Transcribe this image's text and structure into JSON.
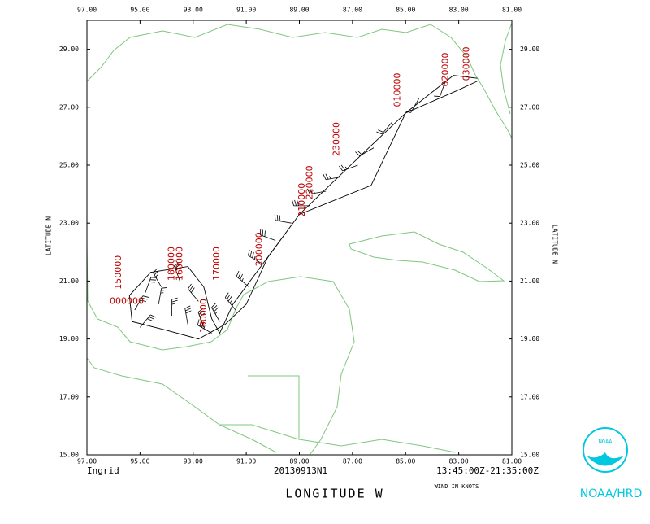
{
  "chart_data": {
    "type": "track",
    "storm": "Ingrid",
    "mission": "20130913N1",
    "time_range": "13:45:00Z-21:35:00Z",
    "wind_units": "WIND IN KNOTS",
    "xlabel": "LONGITUDE  W",
    "ylabel": "LATITUDE  N",
    "credit": "NOAA/HRD",
    "logo_text": "NOAA",
    "xlim": [
      97,
      81
    ],
    "ylim": [
      15,
      30
    ],
    "xticks": [
      {
        "value": 97,
        "label": "97.00"
      },
      {
        "value": 95,
        "label": "95.00"
      },
      {
        "value": 93,
        "label": "93.00"
      },
      {
        "value": 91,
        "label": "91.00"
      },
      {
        "value": 89,
        "label": "89.00"
      },
      {
        "value": 87,
        "label": "87.00"
      },
      {
        "value": 85,
        "label": "85.00"
      },
      {
        "value": 83,
        "label": "83.00"
      },
      {
        "value": 81,
        "label": "81.00"
      }
    ],
    "yticks": [
      {
        "value": 15,
        "label": "15.00"
      },
      {
        "value": 17,
        "label": "17.00"
      },
      {
        "value": 19,
        "label": "19.00"
      },
      {
        "value": 21,
        "label": "21.00"
      },
      {
        "value": 23,
        "label": "23.00"
      },
      {
        "value": 25,
        "label": "25.00"
      },
      {
        "value": 27,
        "label": "27.00"
      },
      {
        "value": 29,
        "label": "29.00"
      }
    ],
    "track": {
      "lon": [
        82.3,
        83.0,
        85.0,
        86.3,
        89.0,
        90.2,
        91.0,
        91.8,
        92.8,
        94.0,
        95.3,
        95.4,
        94.6,
        93.2,
        92.6,
        92.3,
        92.0,
        91.5,
        89.0,
        86.5,
        85.0,
        83.2,
        82.3
      ],
      "lat": [
        27.9,
        27.6,
        26.8,
        24.3,
        23.3,
        21.8,
        20.2,
        19.5,
        19.0,
        19.3,
        19.6,
        20.5,
        21.3,
        21.5,
        20.8,
        19.7,
        19.2,
        20.2,
        23.3,
        25.5,
        26.8,
        28.1,
        28.0
      ]
    },
    "barbs": {
      "lon": [
        83.5,
        84.5,
        85.5,
        86.2,
        86.8,
        87.4,
        88.0,
        88.6,
        89.3,
        89.9,
        90.4,
        90.9,
        91.4,
        92.0,
        92.6,
        93.2,
        93.8,
        94.3,
        94.8,
        95.2,
        95.0,
        94.2,
        93.5,
        92.8,
        92.3
      ],
      "lat": [
        27.9,
        27.3,
        26.5,
        25.6,
        25.0,
        24.6,
        24.1,
        23.6,
        23.0,
        22.4,
        21.6,
        20.8,
        20.0,
        19.6,
        19.4,
        19.5,
        19.8,
        20.2,
        20.6,
        20.0,
        19.4,
        20.8,
        21.0,
        20.3,
        19.2
      ],
      "speed": [
        15,
        15,
        20,
        20,
        25,
        25,
        25,
        30,
        30,
        30,
        35,
        35,
        35,
        35,
        30,
        30,
        25,
        25,
        30,
        35,
        30,
        25,
        25,
        30,
        35
      ],
      "direction": [
        200,
        210,
        220,
        240,
        250,
        260,
        260,
        270,
        280,
        290,
        300,
        310,
        320,
        330,
        340,
        350,
        0,
        10,
        20,
        30,
        40,
        330,
        340,
        320,
        300
      ]
    },
    "annotations": [
      {
        "text": "150000",
        "lon": 95.8,
        "lat": 21.3
      },
      {
        "text": "000000",
        "lon": 95.5,
        "lat": 20.3
      },
      {
        "text": "180000",
        "lon": 93.8,
        "lat": 21.6
      },
      {
        "text": "160000",
        "lon": 93.5,
        "lat": 21.6
      },
      {
        "text": "170000",
        "lon": 92.1,
        "lat": 21.6
      },
      {
        "text": "190000",
        "lon": 92.6,
        "lat": 19.8
      },
      {
        "text": "200000",
        "lon": 90.5,
        "lat": 22.1
      },
      {
        "text": "210000",
        "lon": 88.9,
        "lat": 23.8
      },
      {
        "text": "220000",
        "lon": 88.6,
        "lat": 24.4
      },
      {
        "text": "230000",
        "lon": 87.6,
        "lat": 25.9
      },
      {
        "text": "010000",
        "lon": 85.3,
        "lat": 27.6
      },
      {
        "text": "020000",
        "lon": 83.5,
        "lat": 28.3
      },
      {
        "text": "030000",
        "lon": 82.7,
        "lat": 28.5
      }
    ]
  }
}
